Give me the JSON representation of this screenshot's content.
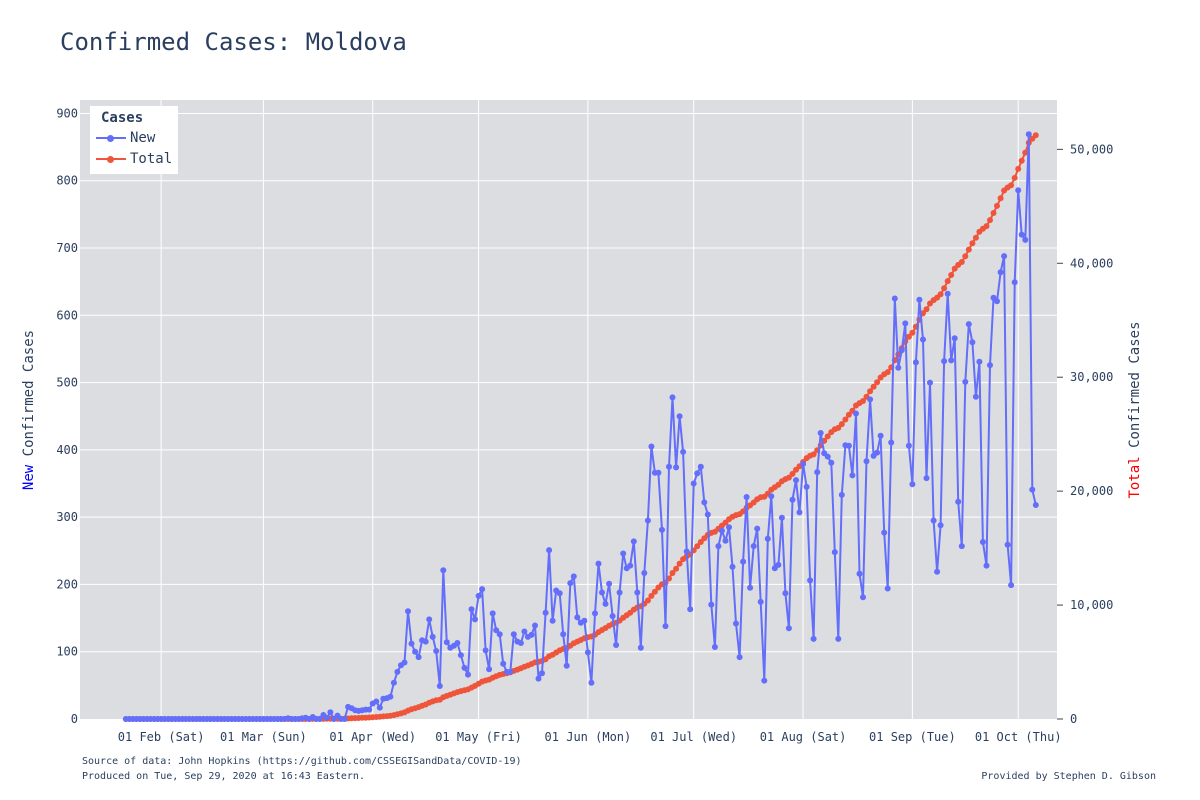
{
  "title": "Confirmed Cases: Moldova",
  "y_left_label": {
    "prefix": "New",
    "suffix": " Confirmed Cases"
  },
  "y_right_label": {
    "prefix": "Total",
    "suffix": " Confirmed Cases"
  },
  "legend": {
    "title": "Cases",
    "new_label": "New",
    "total_label": "Total"
  },
  "footer": {
    "source": "Source of data: John Hopkins (https://github.com/CSSEGISandData/COVID-19)",
    "produced": "Produced on Tue, Sep 29, 2020 at 16:43 Eastern.",
    "credit": "Provided by Stephen D. Gibson"
  },
  "colors": {
    "new": "#636efa",
    "total": "#ef553b",
    "plot_bg": "#dcdde0",
    "grid": "#ffffff",
    "text": "#2a3f5f",
    "new_word": "#0000ff",
    "total_word": "#ff0000"
  },
  "chart_data": {
    "type": "line",
    "title": "Confirmed Cases: Moldova",
    "x_start_date": "2020-01-22",
    "x_tick_labels": [
      "01 Feb (Sat)",
      "01 Mar (Sun)",
      "01 Apr (Wed)",
      "01 May (Fri)",
      "01 Jun (Mon)",
      "01 Jul (Wed)",
      "01 Aug (Sat)",
      "01 Sep (Tue)",
      "01 Oct (Thu)"
    ],
    "x_tick_dates": [
      "2020-02-01",
      "2020-03-01",
      "2020-04-01",
      "2020-05-01",
      "2020-06-01",
      "2020-07-01",
      "2020-08-01",
      "2020-09-01",
      "2020-10-01"
    ],
    "x_range": [
      "2020-01-09",
      "2020-10-12"
    ],
    "y_left_range": [
      0,
      920
    ],
    "y_left_ticks": [
      0,
      100,
      200,
      300,
      400,
      500,
      600,
      700,
      800,
      900
    ],
    "y_right_range": [
      0,
      54331
    ],
    "y_right_ticks": [
      0,
      10000,
      20000,
      30000,
      40000,
      50000
    ],
    "y_right_tick_labels": [
      "0",
      "10,000",
      "20,000",
      "30,000",
      "40,000",
      "50,000"
    ],
    "ylabel_left": "New Confirmed Cases",
    "ylabel_right": "Total Confirmed Cases",
    "legend_position": "top-left",
    "series": [
      {
        "name": "New",
        "axis": "left",
        "values": [
          0,
          0,
          0,
          0,
          0,
          0,
          0,
          0,
          0,
          0,
          0,
          0,
          0,
          0,
          0,
          0,
          0,
          0,
          0,
          0,
          0,
          0,
          0,
          0,
          0,
          0,
          0,
          0,
          0,
          0,
          0,
          0,
          0,
          0,
          0,
          0,
          0,
          0,
          0,
          0,
          0,
          0,
          0,
          0,
          0,
          0,
          1,
          0,
          0,
          0,
          1,
          2,
          0,
          3,
          0,
          0,
          6,
          2,
          10,
          0,
          5,
          0,
          0,
          18,
          16,
          13,
          12,
          13,
          14,
          14,
          23,
          26,
          17,
          30,
          31,
          33,
          54,
          70,
          80,
          84,
          160,
          112,
          100,
          92,
          117,
          115,
          148,
          122,
          101,
          49,
          221,
          114,
          106,
          109,
          113,
          95,
          76,
          66,
          163,
          148,
          183,
          193,
          102,
          74,
          157,
          132,
          126,
          82,
          70,
          70,
          126,
          115,
          113,
          130,
          122,
          125,
          139,
          60,
          68,
          158,
          251,
          146,
          191,
          187,
          126,
          79,
          202,
          212,
          151,
          143,
          146,
          99,
          54,
          157,
          231,
          188,
          171,
          201,
          153,
          110,
          188,
          246,
          224,
          228,
          264,
          188,
          106,
          217,
          295,
          405,
          366,
          366,
          281,
          138,
          375,
          478,
          374,
          450,
          397,
          249,
          163,
          350,
          365,
          375,
          322,
          304,
          170,
          107,
          257,
          280,
          265,
          285,
          226,
          142,
          92,
          234,
          330,
          195,
          257,
          283,
          174,
          57,
          268,
          331,
          224,
          229,
          299,
          187,
          135,
          326,
          355,
          307,
          379,
          345,
          206,
          119,
          367,
          425,
          395,
          390,
          381,
          248,
          119,
          333,
          407,
          406,
          362,
          454,
          216,
          181,
          383,
          475,
          391,
          396,
          421,
          277,
          194,
          411,
          625,
          522,
          548,
          588,
          406,
          349,
          530,
          623,
          564,
          358,
          500,
          295,
          219,
          288,
          532,
          632,
          533,
          566,
          323,
          257,
          501,
          587,
          560,
          479,
          531,
          263,
          228,
          526,
          626,
          621,
          664,
          688,
          259,
          199,
          649,
          786,
          720,
          712,
          869,
          341,
          318
        ]
      },
      {
        "name": "Total",
        "axis": "right",
        "values": [
          0,
          0,
          0,
          0,
          0,
          0,
          0,
          0,
          0,
          0,
          0,
          0,
          0,
          0,
          0,
          0,
          0,
          0,
          0,
          0,
          0,
          0,
          0,
          0,
          0,
          0,
          0,
          0,
          0,
          0,
          0,
          0,
          0,
          0,
          0,
          0,
          0,
          0,
          0,
          0,
          0,
          0,
          0,
          0,
          0,
          0,
          1,
          1,
          1,
          1,
          2,
          4,
          4,
          7,
          7,
          7,
          13,
          15,
          25,
          25,
          30,
          30,
          30,
          48,
          64,
          77,
          89,
          102,
          116,
          130,
          153,
          179,
          196,
          226,
          257,
          290,
          344,
          414,
          494,
          578,
          738,
          850,
          950,
          1042,
          1159,
          1274,
          1422,
          1544,
          1645,
          1694,
          1915,
          2029,
          2135,
          2244,
          2357,
          2452,
          2528,
          2594,
          2757,
          2905,
          3088,
          3281,
          3383,
          3457,
          3614,
          3746,
          3872,
          3954,
          4024,
          4094,
          4220,
          4335,
          4448,
          4578,
          4700,
          4825,
          4964,
          5024,
          5092,
          5250,
          5501,
          5647,
          5838,
          6025,
          6151,
          6230,
          6432,
          6644,
          6795,
          6938,
          7084,
          7183,
          7237,
          7394,
          7625,
          7813,
          7984,
          8185,
          8338,
          8448,
          8636,
          8882,
          9106,
          9334,
          9598,
          9786,
          9892,
          10109,
          10404,
          10809,
          11175,
          11541,
          11822,
          11960,
          12335,
          12813,
          13187,
          13637,
          14034,
          14283,
          14446,
          14796,
          15161,
          15536,
          15858,
          16162,
          16332,
          16439,
          16696,
          16976,
          17241,
          17526,
          17752,
          17894,
          17986,
          18220,
          18550,
          18745,
          19002,
          19285,
          19459,
          19516,
          19784,
          20115,
          20339,
          20568,
          20867,
          21054,
          21189,
          21515,
          21870,
          22177,
          22556,
          22901,
          23107,
          23226,
          23593,
          24018,
          24413,
          24803,
          25184,
          25432,
          25551,
          25884,
          26291,
          26697,
          27059,
          27513,
          27729,
          27910,
          28293,
          28768,
          29159,
          29555,
          29976,
          30253,
          30447,
          30858,
          31483,
          32005,
          32553,
          33141,
          33547,
          33896,
          34426,
          35049,
          35613,
          35971,
          36471,
          36766,
          36985,
          37273,
          37805,
          38437,
          38970,
          39536,
          39859,
          40116,
          40617,
          41204,
          41764,
          42243,
          42774,
          43037,
          43265,
          43791,
          44417,
          45038,
          45702,
          46390,
          46649,
          46848,
          47497,
          48283,
          49003,
          49715,
          50584,
          50925,
          51243
        ]
      }
    ]
  }
}
